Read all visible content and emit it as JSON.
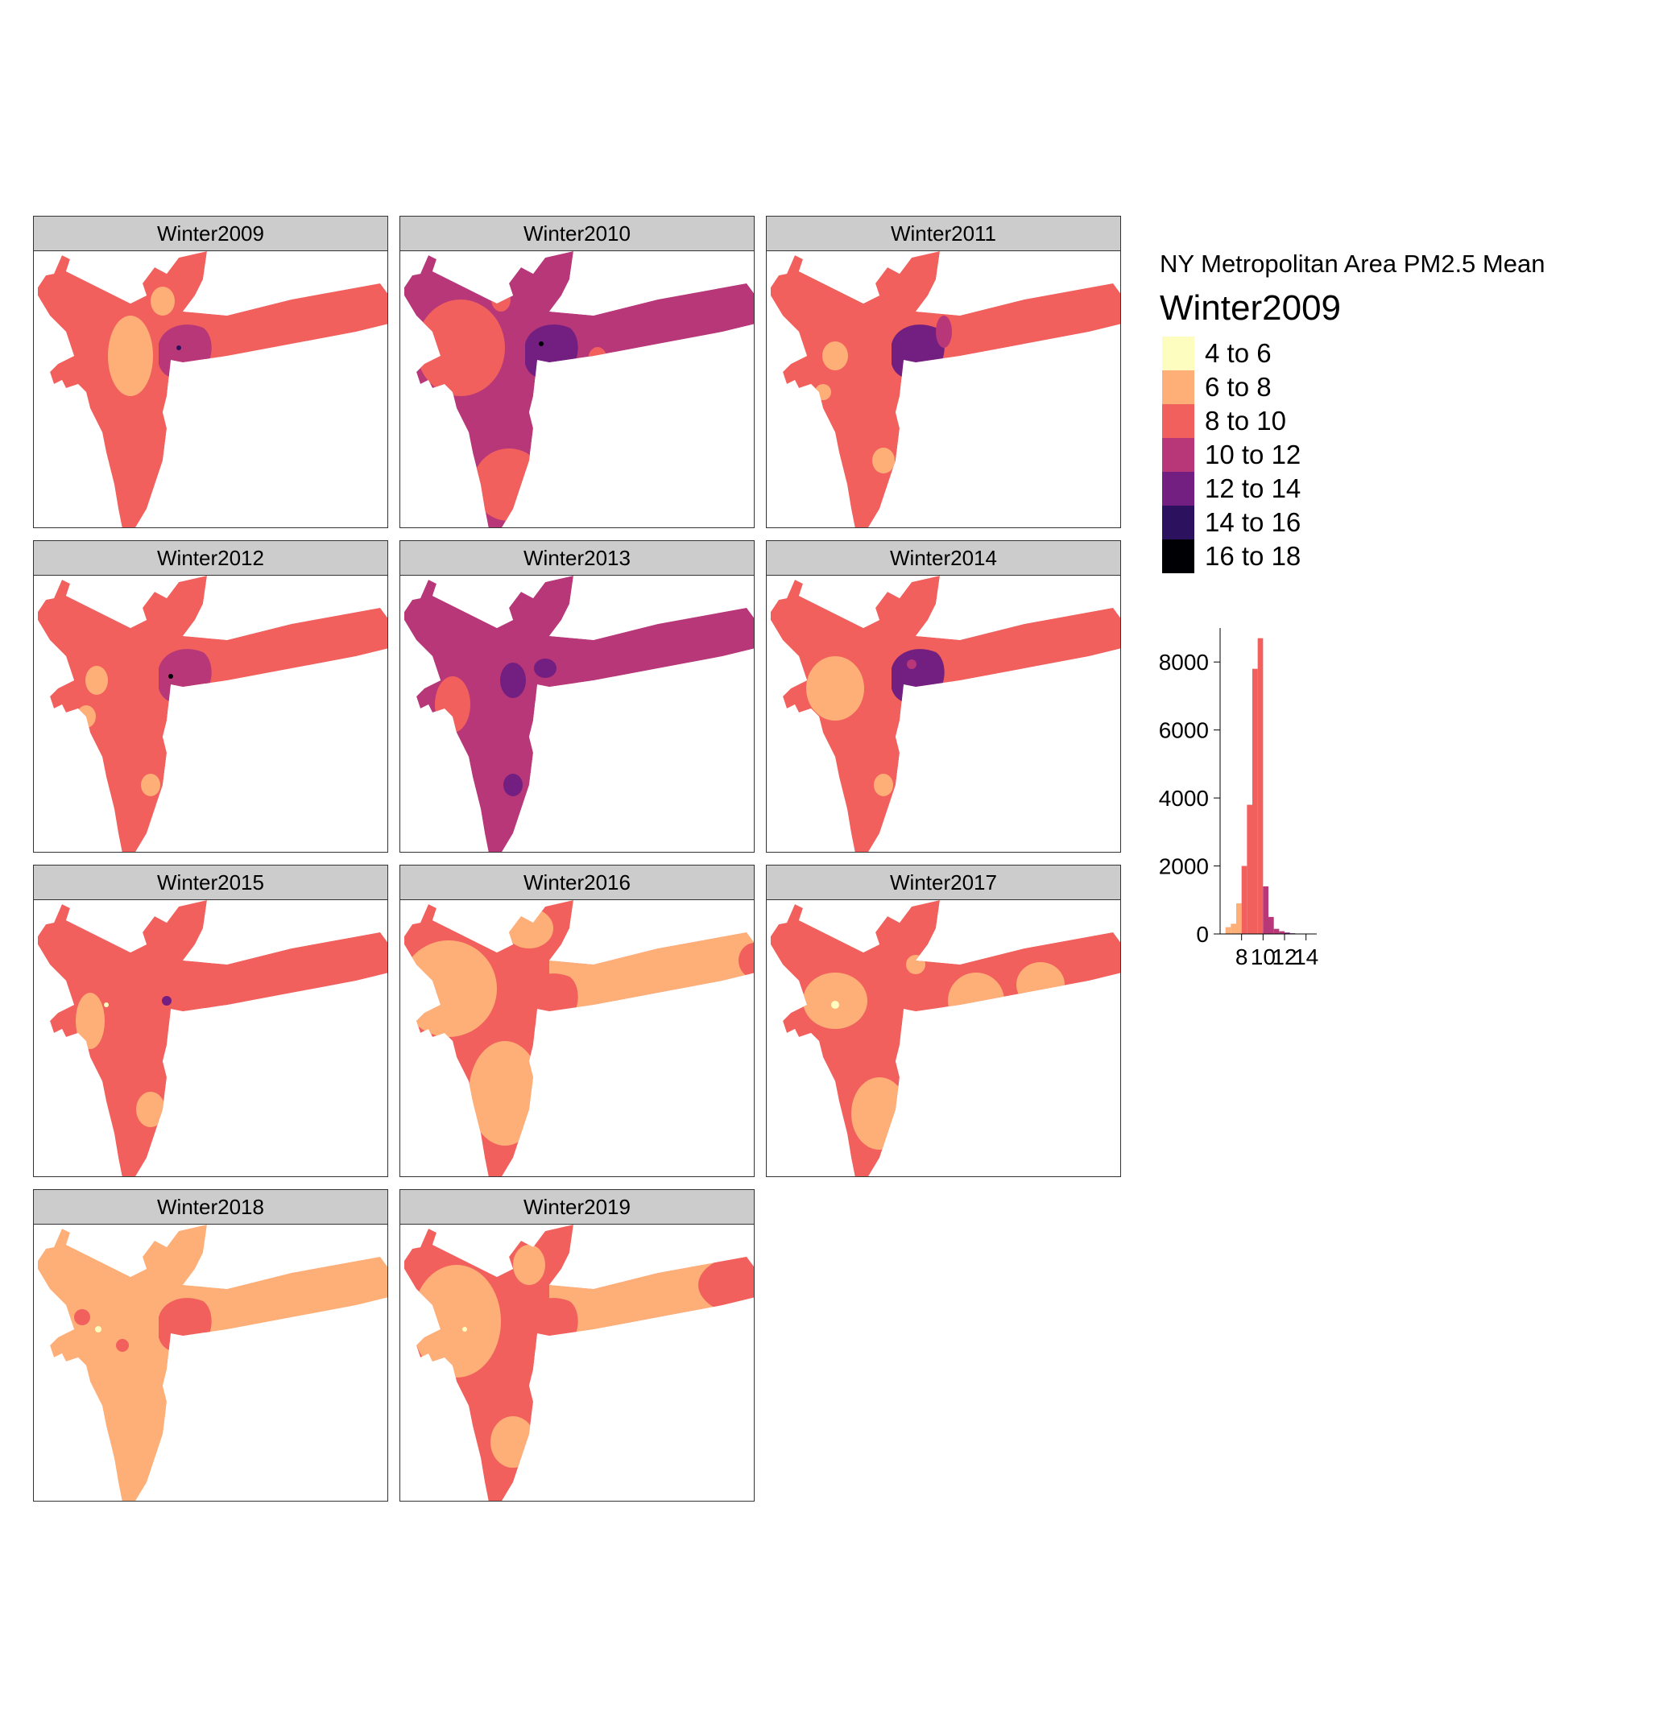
{
  "panels": [
    {
      "label": "Winter2009",
      "base": "c8",
      "core": "c10",
      "arm": "c8",
      "blobs": [
        [
          "c6",
          120,
          130,
          28,
          50
        ],
        [
          "c6",
          160,
          62,
          15,
          18
        ],
        [
          "c10",
          210,
          115,
          8,
          8
        ],
        [
          "c14",
          180,
          120,
          3,
          3
        ],
        [
          "c6",
          230,
          135,
          3,
          3
        ]
      ]
    },
    {
      "label": "Winter2010",
      "base": "c10",
      "core": "c12",
      "arm": "c10",
      "blobs": [
        [
          "c8",
          75,
          120,
          55,
          60
        ],
        [
          "c8",
          135,
          290,
          45,
          45
        ],
        [
          "c8",
          125,
          60,
          12,
          15
        ],
        [
          "c8",
          245,
          135,
          12,
          16
        ],
        [
          "c8",
          80,
          125,
          8,
          8
        ],
        [
          "c16",
          175,
          115,
          3,
          3
        ]
      ]
    },
    {
      "label": "Winter2011",
      "base": "c8",
      "core": "c12",
      "arm": "c8",
      "blobs": [
        [
          "c6",
          85,
          130,
          16,
          18
        ],
        [
          "c6",
          145,
          260,
          14,
          16
        ],
        [
          "c6",
          70,
          175,
          10,
          10
        ],
        [
          "c10",
          220,
          100,
          10,
          20
        ]
      ]
    },
    {
      "label": "Winter2012",
      "base": "c8",
      "core": "c10",
      "arm": "c8",
      "blobs": [
        [
          "c6",
          78,
          130,
          14,
          18
        ],
        [
          "c6",
          65,
          175,
          12,
          14
        ],
        [
          "c6",
          145,
          260,
          12,
          14
        ],
        [
          "c16",
          170,
          125,
          3,
          3
        ]
      ]
    },
    {
      "label": "Winter2013",
      "base": "c10",
      "core": "c10",
      "arm": "c10",
      "blobs": [
        [
          "c8",
          65,
          160,
          22,
          35
        ],
        [
          "c12",
          140,
          130,
          16,
          22
        ],
        [
          "c12",
          180,
          115,
          14,
          12
        ],
        [
          "c12",
          140,
          260,
          12,
          14
        ]
      ]
    },
    {
      "label": "Winter2014",
      "base": "c8",
      "core": "c12",
      "arm": "c8",
      "blobs": [
        [
          "c6",
          85,
          140,
          36,
          40
        ],
        [
          "c6",
          145,
          260,
          12,
          14
        ],
        [
          "c10",
          180,
          110,
          6,
          6
        ]
      ]
    },
    {
      "label": "Winter2015",
      "base": "c8",
      "core": "c8",
      "arm": "c8",
      "blobs": [
        [
          "c6",
          70,
          150,
          18,
          35
        ],
        [
          "c8",
          250,
          135,
          14,
          18
        ],
        [
          "c6",
          145,
          260,
          18,
          22
        ],
        [
          "c12",
          165,
          125,
          6,
          6
        ],
        [
          "c4",
          90,
          130,
          3,
          3
        ]
      ]
    },
    {
      "label": "Winter2016",
      "base": "c8",
      "core": "c8",
      "arm": "c6",
      "blobs": [
        [
          "c6",
          60,
          110,
          60,
          60
        ],
        [
          "c6",
          130,
          240,
          45,
          65
        ],
        [
          "c6",
          160,
          35,
          30,
          25
        ],
        [
          "c8",
          440,
          75,
          20,
          22
        ]
      ]
    },
    {
      "label": "Winter2017",
      "base": "c8",
      "core": "c8",
      "arm": "c8",
      "blobs": [
        [
          "c6",
          85,
          125,
          40,
          35
        ],
        [
          "c6",
          140,
          265,
          35,
          45
        ],
        [
          "c6",
          185,
          80,
          12,
          12
        ],
        [
          "c6",
          260,
          125,
          35,
          35
        ],
        [
          "c6",
          340,
          105,
          30,
          28
        ],
        [
          "c4",
          85,
          130,
          5,
          5
        ]
      ]
    },
    {
      "label": "Winter2018",
      "base": "c6",
      "core": "c8",
      "arm": "c6",
      "blobs": [
        [
          "c6",
          130,
          250,
          35,
          80
        ],
        [
          "c8",
          110,
          150,
          8,
          8
        ],
        [
          "c4",
          80,
          130,
          4,
          4
        ],
        [
          "c8",
          60,
          115,
          10,
          10
        ]
      ]
    },
    {
      "label": "Winter2019",
      "base": "c8",
      "core": "c8",
      "arm": "c6",
      "blobs": [
        [
          "c6",
          70,
          120,
          55,
          70
        ],
        [
          "c6",
          140,
          270,
          28,
          32
        ],
        [
          "c6",
          160,
          50,
          20,
          25
        ],
        [
          "c8",
          440,
          75,
          70,
          40
        ],
        [
          "c8",
          130,
          160,
          8,
          10
        ],
        [
          "c4",
          80,
          130,
          3,
          3
        ]
      ]
    }
  ],
  "legend": {
    "title": "NY Metropolitan Area PM2.5 Mean",
    "subtitle": "Winter2009",
    "classes": [
      {
        "label": "4 to 6",
        "key": "c4",
        "color": "#fcfdbf"
      },
      {
        "label": "6 to 8",
        "key": "c6",
        "color": "#feaf77"
      },
      {
        "label": "8 to 10",
        "key": "c8",
        "color": "#f1605d"
      },
      {
        "label": "10 to 12",
        "key": "c10",
        "color": "#b73779"
      },
      {
        "label": "12 to 14",
        "key": "c12",
        "color": "#721f81"
      },
      {
        "label": "14 to 16",
        "key": "c14",
        "color": "#2c115f"
      },
      {
        "label": "16 to 18",
        "key": "c16",
        "color": "#000004"
      }
    ]
  },
  "chart_data": {
    "type": "bar",
    "title": "",
    "xlabel": "",
    "ylabel": "",
    "ylim": [
      0,
      9000
    ],
    "xlim": [
      6,
      15
    ],
    "y_ticks": [
      "0",
      "2000",
      "4000",
      "6000",
      "8000"
    ],
    "x_ticks": [
      "8",
      "10",
      "12",
      "14"
    ],
    "bins": [
      {
        "from": 6.5,
        "to": 7.0,
        "count": 200,
        "key": "c6"
      },
      {
        "from": 7.0,
        "to": 7.5,
        "count": 300,
        "key": "c6"
      },
      {
        "from": 7.5,
        "to": 8.0,
        "count": 900,
        "key": "c6"
      },
      {
        "from": 8.0,
        "to": 8.5,
        "count": 2000,
        "key": "c8"
      },
      {
        "from": 8.5,
        "to": 9.0,
        "count": 3800,
        "key": "c8"
      },
      {
        "from": 9.0,
        "to": 9.5,
        "count": 7800,
        "key": "c8"
      },
      {
        "from": 9.5,
        "to": 10.0,
        "count": 8700,
        "key": "c8"
      },
      {
        "from": 10.0,
        "to": 10.5,
        "count": 1400,
        "key": "c10"
      },
      {
        "from": 10.5,
        "to": 11.0,
        "count": 500,
        "key": "c10"
      },
      {
        "from": 11.0,
        "to": 11.5,
        "count": 150,
        "key": "c10"
      },
      {
        "from": 11.5,
        "to": 12.0,
        "count": 80,
        "key": "c10"
      },
      {
        "from": 12.0,
        "to": 12.5,
        "count": 40,
        "key": "c12"
      },
      {
        "from": 12.5,
        "to": 13.0,
        "count": 20,
        "key": "c12"
      }
    ]
  }
}
